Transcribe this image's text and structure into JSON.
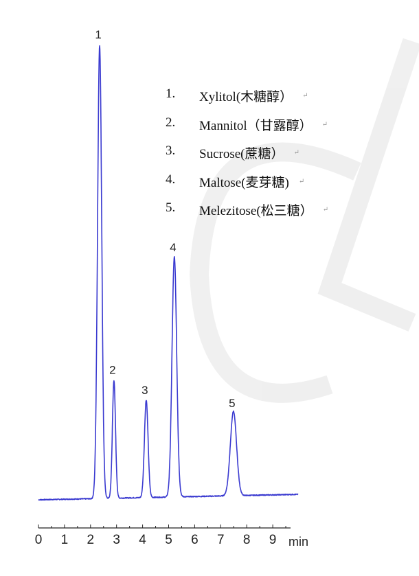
{
  "chart_data": {
    "type": "line",
    "title": "",
    "xlabel": "min",
    "ylabel": "",
    "xlim": [
      0,
      10
    ],
    "xticks": [
      "0",
      "1",
      "2",
      "3",
      "4",
      "5",
      "6",
      "7",
      "8",
      "9"
    ],
    "grid": false,
    "line_color": "#3a3ad0",
    "baseline_start": 0,
    "baseline_end": 1.2,
    "peaks": [
      {
        "label": "1",
        "rt": 2.35,
        "height": 100,
        "width": 0.08
      },
      {
        "label": "2",
        "rt": 2.9,
        "height": 26,
        "width": 0.06
      },
      {
        "label": "3",
        "rt": 4.14,
        "height": 21.5,
        "width": 0.07
      },
      {
        "label": "4",
        "rt": 5.22,
        "height": 53,
        "width": 0.09
      },
      {
        "label": "5",
        "rt": 7.49,
        "height": 18.6,
        "width": 0.12
      }
    ],
    "legend": {
      "placement": "top-right",
      "entries": [
        {
          "num": "1.",
          "text": "Xylitol(木糖醇）"
        },
        {
          "num": "2.",
          "text": "Mannitol（甘露醇）"
        },
        {
          "num": "3.",
          "text": "Sucrose(蔗糖）"
        },
        {
          "num": "4.",
          "text": "Maltose(麦芽糖)"
        },
        {
          "num": "5.",
          "text": "Melezitose(松三糖）"
        }
      ],
      "return_mark": "↵"
    }
  }
}
